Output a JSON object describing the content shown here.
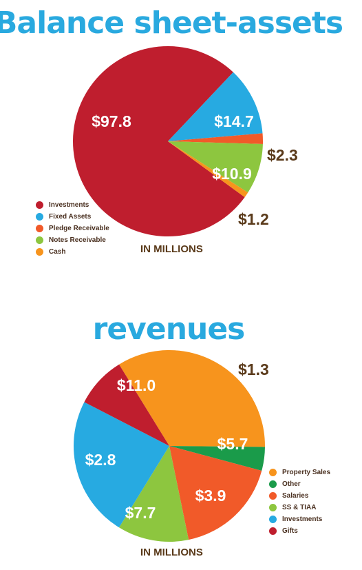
{
  "chart_data": [
    {
      "type": "pie",
      "title": "Balance sheet-assets",
      "units": "IN MILLIONS",
      "slices": [
        {
          "label": "Investments",
          "value": 97.8,
          "display": "$97.8",
          "color": "#bf1e2e",
          "label_color": "#ffffff"
        },
        {
          "label": "Fixed Assets",
          "value": 14.7,
          "display": "$14.7",
          "color": "#27aae1",
          "label_color": "#ffffff"
        },
        {
          "label": "Pledge Receivable",
          "value": 2.3,
          "display": "$2.3",
          "color": "#f15a29",
          "label_color": "#5a3a1a"
        },
        {
          "label": "Notes Receivable",
          "value": 10.9,
          "display": "$10.9",
          "color": "#8dc63f",
          "label_color": "#ffffff"
        },
        {
          "label": "Cash",
          "value": 1.2,
          "display": "$1.2",
          "color": "#f7941d",
          "label_color": "#5a3a1a"
        }
      ]
    },
    {
      "type": "pie",
      "title": "revenues",
      "units": "IN MILLIONS",
      "slices": [
        {
          "label": "Property Sales",
          "value": 11.0,
          "display": "$11.0",
          "color": "#f7941d",
          "label_color": "#ffffff"
        },
        {
          "label": "Other",
          "value": 1.3,
          "display": "$1.3",
          "color": "#1a9b4a",
          "label_color": "#5a3a1a"
        },
        {
          "label": "Salaries",
          "value": 5.7,
          "display": "$5.7",
          "color": "#f15a29",
          "label_color": "#ffffff"
        },
        {
          "label": "SS & TIAA",
          "value": 3.9,
          "display": "$3.9",
          "color": "#8dc63f",
          "label_color": "#ffffff"
        },
        {
          "label": "Investments",
          "value": 7.7,
          "display": "$7.7",
          "color": "#27aae1",
          "label_color": "#ffffff"
        },
        {
          "label": "Gifts",
          "value": 2.8,
          "display": "$2.8",
          "color": "#bf1e2e",
          "label_color": "#ffffff"
        }
      ]
    }
  ]
}
